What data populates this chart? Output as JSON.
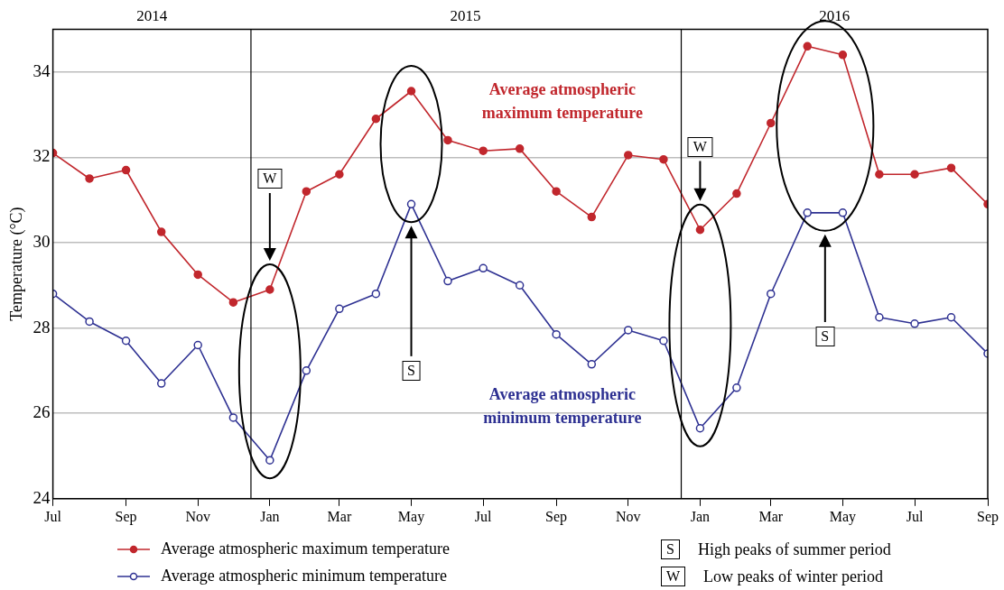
{
  "chart_data": {
    "type": "line",
    "ylabel": "Temperature (°C)",
    "x": [
      "2014-07",
      "2014-08",
      "2014-09",
      "2014-10",
      "2014-11",
      "2014-12",
      "2015-01",
      "2015-02",
      "2015-03",
      "2015-04",
      "2015-05",
      "2015-06",
      "2015-07",
      "2015-08",
      "2015-09",
      "2015-10",
      "2015-11",
      "2015-12",
      "2016-01",
      "2016-02",
      "2016-03",
      "2016-04",
      "2016-05",
      "2016-06",
      "2016-07",
      "2016-08",
      "2016-09"
    ],
    "series": [
      {
        "name": "Average atmospheric maximum temperature",
        "color": "#c1272d",
        "values": [
          32.1,
          31.5,
          31.7,
          30.25,
          29.25,
          28.6,
          28.9,
          31.2,
          31.6,
          32.9,
          33.55,
          32.4,
          32.15,
          32.2,
          31.2,
          30.6,
          32.05,
          31.95,
          30.3,
          31.15,
          32.8,
          34.6,
          34.4,
          31.6,
          31.6,
          31.75,
          30.9
        ]
      },
      {
        "name": "Average atmospheric minimum temperature",
        "color": "#2e3192",
        "values": [
          28.8,
          28.15,
          27.7,
          26.7,
          27.6,
          25.9,
          24.9,
          27.0,
          28.45,
          28.8,
          30.9,
          29.1,
          29.4,
          29.0,
          27.85,
          27.15,
          27.95,
          27.7,
          25.65,
          26.6,
          28.8,
          30.7,
          30.7,
          28.25,
          28.1,
          28.25,
          27.4
        ]
      }
    ],
    "xlim": [
      "2014-07",
      "2016-09"
    ],
    "xticks": [
      {
        "value": "2014-07",
        "label": "Jul"
      },
      {
        "value": "2014-09",
        "label": "Sep"
      },
      {
        "value": "2014-11",
        "label": "Nov"
      },
      {
        "value": "2015-01",
        "label": "Jan"
      },
      {
        "value": "2015-03",
        "label": "Mar"
      },
      {
        "value": "2015-05",
        "label": "May"
      },
      {
        "value": "2015-07",
        "label": "Jul"
      },
      {
        "value": "2015-09",
        "label": "Sep"
      },
      {
        "value": "2015-11",
        "label": "Nov"
      },
      {
        "value": "2016-01",
        "label": "Jan"
      },
      {
        "value": "2016-03",
        "label": "Mar"
      },
      {
        "value": "2016-05",
        "label": "May"
      },
      {
        "value": "2016-07",
        "label": "Jul"
      },
      {
        "value": "2016-09",
        "label": "Sep"
      }
    ],
    "ylim": [
      24,
      35
    ],
    "yticks": [
      24,
      26,
      28,
      30,
      32,
      34
    ],
    "x2lim": [
      "2014-07",
      "2016-09"
    ],
    "x2ticks": [
      {
        "value": "2014-09-23",
        "label": "2014"
      },
      {
        "value": "2015-06-16",
        "label": "2015"
      },
      {
        "value": "2016-04-24",
        "label": "2016"
      }
    ],
    "ref_lines": [
      {
        "axis": "x",
        "value": "2014-12-16",
        "color": "#000000"
      },
      {
        "axis": "x",
        "value": "2015-12-16",
        "color": "#000000"
      }
    ],
    "annotations": [
      {
        "text": "S",
        "x": "2015-05",
        "y": 27.0
      },
      {
        "text": "W",
        "x": "2015-01",
        "y": 31.5
      },
      {
        "text": "S",
        "x": "2016-04-16",
        "y": 27.8
      },
      {
        "text": "W",
        "x": "2016-01",
        "y": 32.25
      },
      "High peaks of summer period",
      "Low peaks of winter period"
    ],
    "grid": "y",
    "legend": "bottom",
    "marker": "circle",
    "line_style": "solid"
  }
}
